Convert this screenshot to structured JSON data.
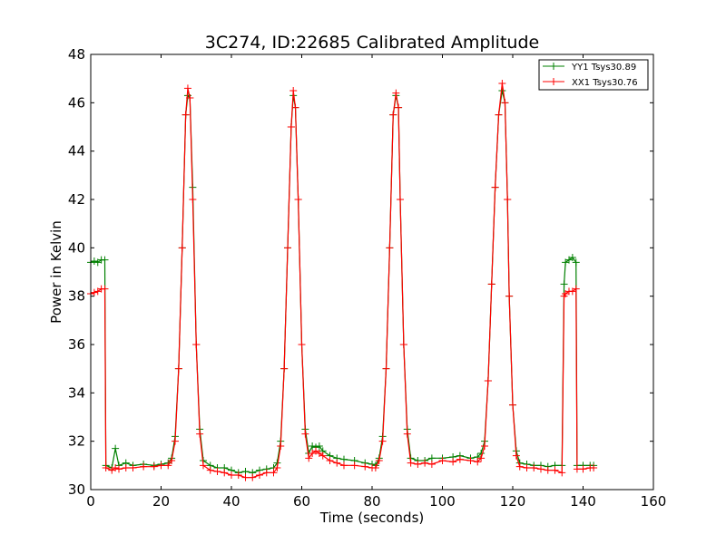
{
  "chart_data": {
    "type": "line",
    "title": "3C274, ID:22685 Calibrated Amplitude",
    "xlabel": "Time (seconds)",
    "ylabel": "Power in Kelvin",
    "xlim": [
      0,
      160
    ],
    "ylim": [
      30,
      48
    ],
    "xticks": [
      0,
      20,
      40,
      60,
      80,
      100,
      120,
      140,
      160
    ],
    "yticks": [
      30,
      32,
      34,
      36,
      38,
      40,
      42,
      44,
      46,
      48
    ],
    "grid": false,
    "legend_position": "top-right",
    "marker": "+",
    "series": [
      {
        "name": "YY1 Tsys30.89",
        "color": "#008000",
        "points": [
          [
            0,
            39.4
          ],
          [
            1,
            39.45
          ],
          [
            2,
            39.4
          ],
          [
            3,
            39.5
          ],
          [
            4,
            39.5
          ],
          [
            4.3,
            31.0
          ],
          [
            6,
            30.9
          ],
          [
            7,
            31.7
          ],
          [
            8,
            31.0
          ],
          [
            10,
            31.1
          ],
          [
            12,
            31.0
          ],
          [
            15,
            31.05
          ],
          [
            18,
            31.0
          ],
          [
            20,
            31.05
          ],
          [
            22,
            31.1
          ],
          [
            23,
            31.3
          ],
          [
            24,
            32.2
          ],
          [
            25,
            35.0
          ],
          [
            26,
            40.0
          ],
          [
            27,
            45.5
          ],
          [
            27.6,
            46.3
          ],
          [
            28.2,
            46.2
          ],
          [
            29,
            42.5
          ],
          [
            30,
            36.0
          ],
          [
            31,
            32.5
          ],
          [
            32,
            31.2
          ],
          [
            34,
            31.0
          ],
          [
            36,
            30.9
          ],
          [
            38,
            30.9
          ],
          [
            40,
            30.8
          ],
          [
            42,
            30.7
          ],
          [
            44,
            30.75
          ],
          [
            46,
            30.7
          ],
          [
            48,
            30.8
          ],
          [
            50,
            30.85
          ],
          [
            52,
            30.9
          ],
          [
            53,
            31.1
          ],
          [
            54,
            32.0
          ],
          [
            55,
            35.0
          ],
          [
            56,
            40.0
          ],
          [
            57,
            45.0
          ],
          [
            57.6,
            46.3
          ],
          [
            58.2,
            45.8
          ],
          [
            59,
            42.0
          ],
          [
            60,
            36.0
          ],
          [
            61,
            32.5
          ],
          [
            62,
            31.5
          ],
          [
            63,
            31.8
          ],
          [
            64,
            31.75
          ],
          [
            65,
            31.8
          ],
          [
            66,
            31.6
          ],
          [
            68,
            31.4
          ],
          [
            70,
            31.3
          ],
          [
            72,
            31.25
          ],
          [
            75,
            31.2
          ],
          [
            78,
            31.1
          ],
          [
            80,
            31.05
          ],
          [
            81,
            31.0
          ],
          [
            82,
            31.3
          ],
          [
            83,
            32.2
          ],
          [
            84,
            35.0
          ],
          [
            85,
            40.0
          ],
          [
            86,
            45.5
          ],
          [
            86.8,
            46.3
          ],
          [
            87.5,
            45.8
          ],
          [
            88,
            42.0
          ],
          [
            89,
            36.0
          ],
          [
            90,
            32.5
          ],
          [
            91,
            31.3
          ],
          [
            93,
            31.2
          ],
          [
            95,
            31.2
          ],
          [
            97,
            31.3
          ],
          [
            100,
            31.3
          ],
          [
            103,
            31.35
          ],
          [
            105,
            31.4
          ],
          [
            108,
            31.3
          ],
          [
            110,
            31.35
          ],
          [
            111,
            31.5
          ],
          [
            112,
            32.0
          ],
          [
            113,
            34.5
          ],
          [
            114,
            38.5
          ],
          [
            115,
            42.5
          ],
          [
            116,
            45.5
          ],
          [
            117,
            46.5
          ],
          [
            117.8,
            46.0
          ],
          [
            118.5,
            42.0
          ],
          [
            119,
            38.0
          ],
          [
            120,
            33.5
          ],
          [
            121,
            31.6
          ],
          [
            122,
            31.1
          ],
          [
            124,
            31.05
          ],
          [
            126,
            31.0
          ],
          [
            128,
            31.0
          ],
          [
            130,
            30.95
          ],
          [
            132,
            31.0
          ],
          [
            134,
            31.0
          ],
          [
            134.6,
            38.5
          ],
          [
            135,
            39.4
          ],
          [
            136,
            39.5
          ],
          [
            137,
            39.6
          ],
          [
            138,
            39.4
          ],
          [
            138.3,
            31.0
          ],
          [
            140,
            31.0
          ],
          [
            142,
            31.0
          ],
          [
            143,
            31.0
          ]
        ]
      },
      {
        "name": "XX1 Tsys30.76",
        "color": "#ff0000",
        "points": [
          [
            0,
            38.1
          ],
          [
            1,
            38.15
          ],
          [
            2,
            38.2
          ],
          [
            3,
            38.3
          ],
          [
            4,
            38.3
          ],
          [
            4.3,
            30.9
          ],
          [
            6,
            30.8
          ],
          [
            7,
            30.9
          ],
          [
            8,
            30.85
          ],
          [
            10,
            30.9
          ],
          [
            12,
            30.9
          ],
          [
            15,
            30.95
          ],
          [
            18,
            30.95
          ],
          [
            20,
            31.0
          ],
          [
            22,
            31.0
          ],
          [
            23,
            31.2
          ],
          [
            24,
            32.0
          ],
          [
            25,
            35.0
          ],
          [
            26,
            40.0
          ],
          [
            27,
            45.5
          ],
          [
            27.6,
            46.6
          ],
          [
            28.2,
            46.2
          ],
          [
            29,
            42.0
          ],
          [
            30,
            36.0
          ],
          [
            31,
            32.3
          ],
          [
            32,
            31.0
          ],
          [
            34,
            30.8
          ],
          [
            36,
            30.75
          ],
          [
            38,
            30.7
          ],
          [
            40,
            30.6
          ],
          [
            42,
            30.6
          ],
          [
            44,
            30.5
          ],
          [
            46,
            30.5
          ],
          [
            48,
            30.6
          ],
          [
            50,
            30.7
          ],
          [
            52,
            30.7
          ],
          [
            53,
            30.9
          ],
          [
            54,
            31.8
          ],
          [
            55,
            35.0
          ],
          [
            56,
            40.0
          ],
          [
            57,
            45.0
          ],
          [
            57.6,
            46.5
          ],
          [
            58.2,
            45.8
          ],
          [
            59,
            42.0
          ],
          [
            60,
            36.0
          ],
          [
            61,
            32.3
          ],
          [
            62,
            31.3
          ],
          [
            63,
            31.5
          ],
          [
            64,
            31.6
          ],
          [
            65,
            31.5
          ],
          [
            66,
            31.4
          ],
          [
            68,
            31.2
          ],
          [
            70,
            31.1
          ],
          [
            72,
            31.0
          ],
          [
            75,
            31.0
          ],
          [
            78,
            30.95
          ],
          [
            80,
            30.9
          ],
          [
            81,
            30.9
          ],
          [
            82,
            31.2
          ],
          [
            83,
            32.0
          ],
          [
            84,
            35.0
          ],
          [
            85,
            40.0
          ],
          [
            86,
            45.5
          ],
          [
            86.8,
            46.4
          ],
          [
            87.5,
            45.8
          ],
          [
            88,
            42.0
          ],
          [
            89,
            36.0
          ],
          [
            90,
            32.3
          ],
          [
            91,
            31.1
          ],
          [
            93,
            31.05
          ],
          [
            95,
            31.1
          ],
          [
            97,
            31.05
          ],
          [
            100,
            31.2
          ],
          [
            103,
            31.15
          ],
          [
            105,
            31.25
          ],
          [
            108,
            31.2
          ],
          [
            110,
            31.15
          ],
          [
            111,
            31.3
          ],
          [
            112,
            31.8
          ],
          [
            113,
            34.5
          ],
          [
            114,
            38.5
          ],
          [
            115,
            42.5
          ],
          [
            116,
            45.5
          ],
          [
            117,
            46.8
          ],
          [
            117.8,
            46.0
          ],
          [
            118.5,
            42.0
          ],
          [
            119,
            38.0
          ],
          [
            120,
            33.5
          ],
          [
            121,
            31.4
          ],
          [
            122,
            30.95
          ],
          [
            124,
            30.9
          ],
          [
            126,
            30.9
          ],
          [
            128,
            30.85
          ],
          [
            130,
            30.8
          ],
          [
            132,
            30.8
          ],
          [
            134,
            30.7
          ],
          [
            134.6,
            38.0
          ],
          [
            135,
            38.1
          ],
          [
            136,
            38.2
          ],
          [
            137,
            38.2
          ],
          [
            138,
            38.3
          ],
          [
            138.3,
            30.85
          ],
          [
            140,
            30.85
          ],
          [
            142,
            30.9
          ],
          [
            143,
            30.9
          ]
        ]
      }
    ]
  }
}
